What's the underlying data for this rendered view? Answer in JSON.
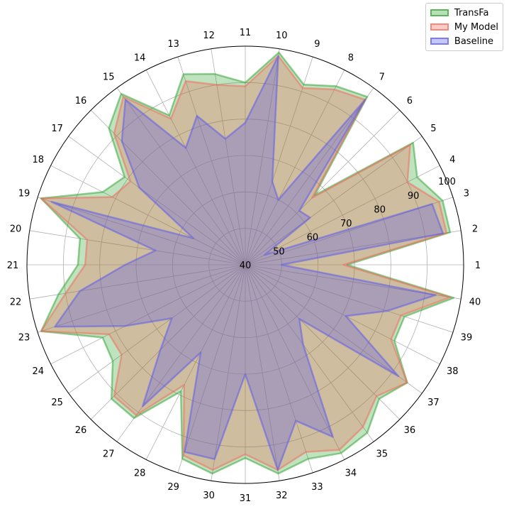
{
  "chart_data": {
    "type": "radar",
    "title": "",
    "axes": [
      "1",
      "2",
      "3",
      "4",
      "5",
      "6",
      "7",
      "8",
      "9",
      "10",
      "11",
      "12",
      "13",
      "14",
      "15",
      "16",
      "17",
      "18",
      "19",
      "20",
      "21",
      "22",
      "23",
      "24",
      "25",
      "26",
      "27",
      "28",
      "29",
      "30",
      "31",
      "32",
      "33",
      "34",
      "35",
      "36",
      "37",
      "38",
      "39",
      "40"
    ],
    "rlim": [
      40,
      100
    ],
    "rticks": [
      "40",
      "50",
      "60",
      "70",
      "80",
      "90",
      "100"
    ],
    "grid": true,
    "legend_position": "top-right",
    "series": [
      {
        "name": "TransFa",
        "color": "#2ca02c",
        "values": [
          68,
          97,
          97,
          93,
          97,
          67,
          97,
          95,
          92,
          99,
          90,
          93,
          95,
          86,
          98,
          93,
          81,
          84,
          99,
          86,
          86,
          92,
          99,
          84,
          85,
          92,
          92,
          79,
          96,
          98,
          93,
          98,
          96,
          98,
          97,
          92,
          95,
          86,
          86,
          98
        ]
      },
      {
        "name": "My Model",
        "color": "#f4665a",
        "values": [
          67,
          96,
          96,
          90,
          96,
          66,
          96,
          94,
          91,
          98,
          89,
          90,
          93,
          85,
          97,
          91,
          79,
          81,
          99,
          84,
          84,
          90,
          99,
          82,
          82,
          91,
          91,
          77,
          95,
          97,
          92,
          97,
          94,
          97,
          95,
          91,
          95,
          85,
          85,
          97
        ]
      },
      {
        "name": "Baseline",
        "color": "#5555ee",
        "values": [
          50,
          95,
          94,
          46,
          62,
          61,
          96,
          60,
          64,
          98,
          79,
          75,
          83,
          76,
          96,
          88,
          76,
          56,
          96,
          65,
          73,
          86,
          95,
          77,
          65,
          73,
          88,
          67,
          94,
          94,
          70,
          97,
          85,
          93,
          67,
          61,
          92,
          71,
          81,
          93
        ]
      }
    ]
  }
}
